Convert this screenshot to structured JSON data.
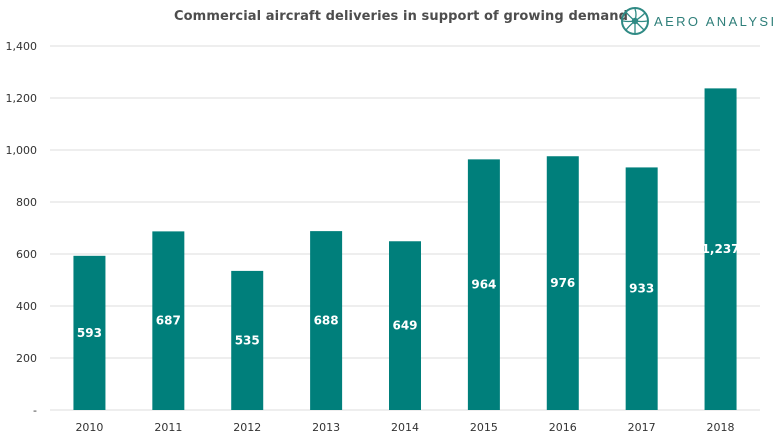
{
  "brand": {
    "name": "AERO ANALYSIS",
    "color": "#2f8a84"
  },
  "chart_data": {
    "type": "bar",
    "title": "Commercial aircraft deliveries in support of growing demand",
    "categories": [
      "2010",
      "2011",
      "2012",
      "2013",
      "2014",
      "2015",
      "2016",
      "2017",
      "2018"
    ],
    "values": [
      593,
      687,
      535,
      688,
      649,
      964,
      976,
      933,
      1237
    ],
    "data_labels": [
      "593",
      "687",
      "535",
      "688",
      "649",
      "964",
      "976",
      "933",
      "1,237"
    ],
    "ylim": [
      0,
      1400
    ],
    "yticks": [
      0,
      200,
      400,
      600,
      800,
      1000,
      1200,
      1400
    ],
    "ytick_labels": [
      "-",
      "200",
      "400",
      "600",
      "800",
      "1,000",
      "1,200",
      "1,400"
    ],
    "xlabel": "",
    "ylabel": "",
    "grid": true,
    "bar_color": "#007f7b"
  }
}
